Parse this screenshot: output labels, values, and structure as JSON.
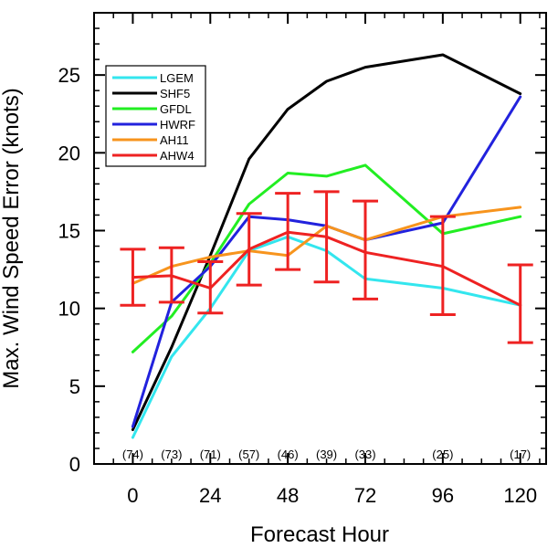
{
  "chart_data": {
    "type": "line",
    "xlabel": "Forecast Hour",
    "ylabel": "Max. Wind Speed Error (knots)",
    "xlim": [
      -12,
      128
    ],
    "ylim": [
      0,
      29
    ],
    "x_ticks": [
      0,
      24,
      48,
      72,
      96,
      120
    ],
    "y_ticks": [
      0,
      5,
      10,
      15,
      20,
      25
    ],
    "x_tick_labels": [
      "0",
      "24",
      "48",
      "72",
      "96",
      "120"
    ],
    "y_tick_labels": [
      "0",
      "5",
      "10",
      "15",
      "20",
      "25"
    ],
    "legend": {
      "placement": "top-left"
    },
    "series": [
      {
        "name": "LGEM",
        "color": "#33e6ee",
        "points": [
          [
            0,
            1.7
          ],
          [
            12,
            6.9
          ],
          [
            24,
            10.0
          ],
          [
            36,
            13.7
          ],
          [
            48,
            14.6
          ],
          [
            60,
            13.7
          ],
          [
            72,
            11.9
          ],
          [
            96,
            11.3
          ],
          [
            120,
            10.2
          ]
        ]
      },
      {
        "name": "SHF5",
        "color": "#000000",
        "points": [
          [
            0,
            2.2
          ],
          [
            12,
            7.5
          ],
          [
            24,
            13.4
          ],
          [
            36,
            19.6
          ],
          [
            48,
            22.8
          ],
          [
            60,
            24.6
          ],
          [
            72,
            25.5
          ],
          [
            96,
            26.3
          ],
          [
            120,
            23.8
          ]
        ]
      },
      {
        "name": "GFDL",
        "color": "#22ee22",
        "points": [
          [
            0,
            7.2
          ],
          [
            12,
            9.5
          ],
          [
            24,
            12.9
          ],
          [
            36,
            16.7
          ],
          [
            48,
            18.7
          ],
          [
            60,
            18.5
          ],
          [
            72,
            19.2
          ],
          [
            96,
            14.8
          ],
          [
            120,
            15.9
          ]
        ]
      },
      {
        "name": "HWRF",
        "color": "#2222dd",
        "points": [
          [
            0,
            2.4
          ],
          [
            12,
            10.4
          ],
          [
            24,
            12.7
          ],
          [
            36,
            15.9
          ],
          [
            48,
            15.7
          ],
          [
            60,
            15.3
          ],
          [
            72,
            14.4
          ],
          [
            96,
            15.5
          ],
          [
            120,
            23.6
          ]
        ]
      },
      {
        "name": "AH11",
        "color": "#f7941d",
        "points": [
          [
            0,
            11.6
          ],
          [
            12,
            12.7
          ],
          [
            24,
            13.3
          ],
          [
            36,
            13.7
          ],
          [
            48,
            13.4
          ],
          [
            60,
            15.3
          ],
          [
            72,
            14.4
          ],
          [
            96,
            15.9
          ],
          [
            120,
            16.5
          ]
        ]
      },
      {
        "name": "AHW4",
        "color": "#ee2222",
        "points": [
          [
            0,
            12.0
          ],
          [
            12,
            12.1
          ],
          [
            24,
            11.3
          ],
          [
            36,
            13.8
          ],
          [
            48,
            14.9
          ],
          [
            60,
            14.6
          ],
          [
            72,
            13.6
          ],
          [
            96,
            12.7
          ],
          [
            120,
            10.2
          ]
        ]
      }
    ],
    "error_bars": {
      "series": "AHW4",
      "color": "#ee2222",
      "ranges": [
        {
          "x": 0,
          "low": 10.2,
          "high": 13.8
        },
        {
          "x": 12,
          "low": 10.4,
          "high": 13.9
        },
        {
          "x": 24,
          "low": 9.7,
          "high": 13.0
        },
        {
          "x": 36,
          "low": 11.5,
          "high": 16.1
        },
        {
          "x": 48,
          "low": 12.5,
          "high": 17.4
        },
        {
          "x": 60,
          "low": 11.7,
          "high": 17.5
        },
        {
          "x": 72,
          "low": 10.6,
          "high": 16.9
        },
        {
          "x": 96,
          "low": 9.6,
          "high": 15.9
        },
        {
          "x": 120,
          "low": 7.8,
          "high": 12.8
        }
      ]
    },
    "sample_sizes": [
      {
        "x": 0,
        "label": "(74)"
      },
      {
        "x": 12,
        "label": "(73)"
      },
      {
        "x": 24,
        "label": "(71)"
      },
      {
        "x": 36,
        "label": "(57)"
      },
      {
        "x": 48,
        "label": "(46)"
      },
      {
        "x": 60,
        "label": "(39)"
      },
      {
        "x": 72,
        "label": "(33)"
      },
      {
        "x": 96,
        "label": "(25)"
      },
      {
        "x": 120,
        "label": "(17)"
      }
    ]
  }
}
